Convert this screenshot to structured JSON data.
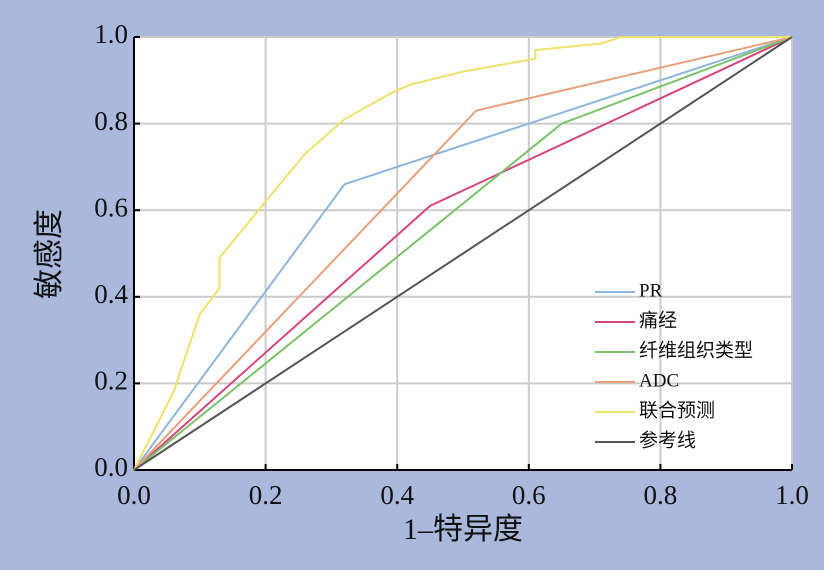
{
  "chart_data": {
    "type": "line",
    "xlabel": "1–特异度",
    "ylabel": "敏感度",
    "xlim": [
      0,
      1
    ],
    "ylim": [
      0,
      1
    ],
    "xticks": [
      {
        "value": 0,
        "label": "0.0"
      },
      {
        "value": 0.2,
        "label": "0.2"
      },
      {
        "value": 0.4,
        "label": "0.4"
      },
      {
        "value": 0.6,
        "label": "0.6"
      },
      {
        "value": 0.8,
        "label": "0.8"
      },
      {
        "value": 1,
        "label": "1.0"
      }
    ],
    "yticks": [
      {
        "value": 0,
        "label": "0.0"
      },
      {
        "value": 0.2,
        "label": "0.2"
      },
      {
        "value": 0.4,
        "label": "0.4"
      },
      {
        "value": 0.6,
        "label": "0.6"
      },
      {
        "value": 0.8,
        "label": "0.8"
      },
      {
        "value": 1,
        "label": "1.0"
      }
    ],
    "grid": true,
    "legend": "lower right",
    "series": [
      {
        "name": "PR",
        "color": "#8fb6dc",
        "x": [
          0,
          0.32,
          1
        ],
        "values": [
          0,
          0.66,
          1
        ]
      },
      {
        "name": "痛经",
        "color": "#d4467c",
        "x": [
          0,
          0.45,
          1
        ],
        "values": [
          0,
          0.61,
          1
        ]
      },
      {
        "name": "纤维组织类型",
        "color": "#7cc26a",
        "x": [
          0,
          0.65,
          1
        ],
        "values": [
          0,
          0.8,
          1
        ]
      },
      {
        "name": "ADC",
        "color": "#e9a07c",
        "x": [
          0,
          0.52,
          1
        ],
        "values": [
          0,
          0.83,
          1
        ]
      },
      {
        "name": "联合预测",
        "color": "#efe26c",
        "x": [
          0,
          0.06,
          0.1,
          0.13,
          0.13,
          0.2,
          0.26,
          0.32,
          0.39,
          0.42,
          0.5,
          0.61,
          0.61,
          0.71,
          0.74,
          1
        ],
        "values": [
          0,
          0.18,
          0.36,
          0.42,
          0.49,
          0.62,
          0.73,
          0.81,
          0.87,
          0.89,
          0.92,
          0.95,
          0.97,
          0.985,
          1,
          1
        ]
      },
      {
        "name": "参考线",
        "color": "#555555",
        "x": [
          0,
          1
        ],
        "values": [
          0,
          1
        ]
      }
    ]
  }
}
